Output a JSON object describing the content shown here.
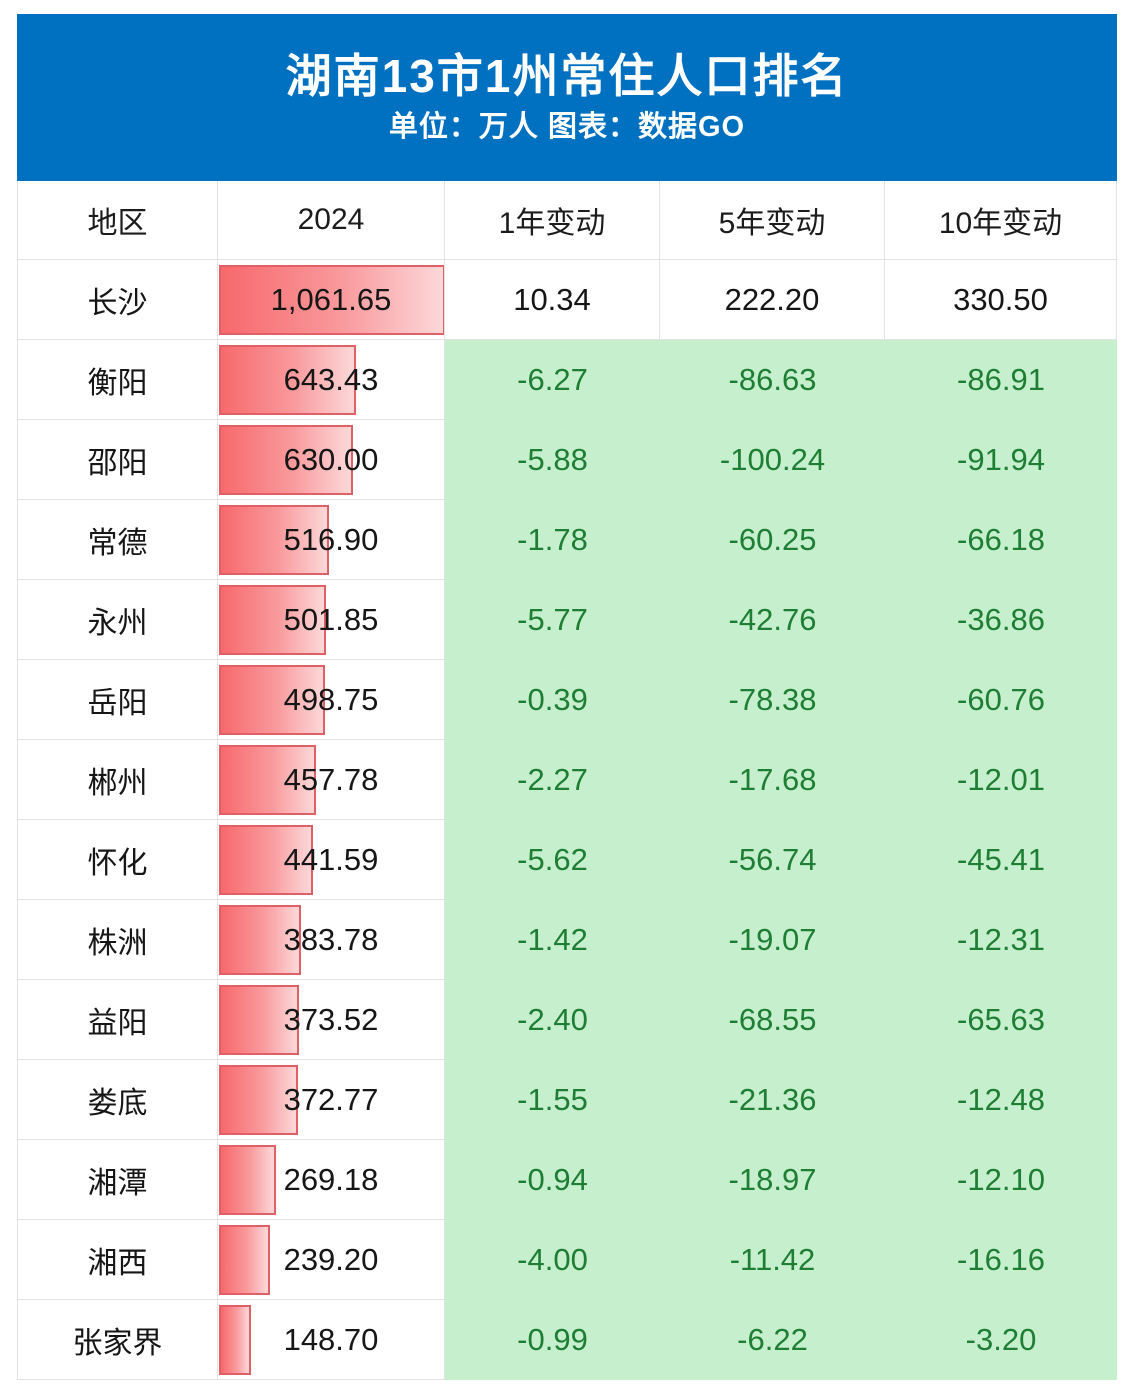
{
  "banner": {
    "title": "湖南13市1州常住人口排名",
    "subtitle": "单位：万人 图表：数据GO",
    "background_color": "#0070c0",
    "text_color": "#ffffff"
  },
  "table": {
    "columns": [
      "地区",
      "2024",
      "1年变动",
      "5年变动",
      "10年变动"
    ],
    "rows": [
      {
        "region": "长沙",
        "value_2024": "1,061.65",
        "change_1yr": "10.34",
        "change_5yr": "222.20",
        "change_10yr": "330.50"
      },
      {
        "region": "衡阳",
        "value_2024": "643.43",
        "change_1yr": "-6.27",
        "change_5yr": "-86.63",
        "change_10yr": "-86.91"
      },
      {
        "region": "邵阳",
        "value_2024": "630.00",
        "change_1yr": "-5.88",
        "change_5yr": "-100.24",
        "change_10yr": "-91.94"
      },
      {
        "region": "常德",
        "value_2024": "516.90",
        "change_1yr": "-1.78",
        "change_5yr": "-60.25",
        "change_10yr": "-66.18"
      },
      {
        "region": "永州",
        "value_2024": "501.85",
        "change_1yr": "-5.77",
        "change_5yr": "-42.76",
        "change_10yr": "-36.86"
      },
      {
        "region": "岳阳",
        "value_2024": "498.75",
        "change_1yr": "-0.39",
        "change_5yr": "-78.38",
        "change_10yr": "-60.76"
      },
      {
        "region": "郴州",
        "value_2024": "457.78",
        "change_1yr": "-2.27",
        "change_5yr": "-17.68",
        "change_10yr": "-12.01"
      },
      {
        "region": "怀化",
        "value_2024": "441.59",
        "change_1yr": "-5.62",
        "change_5yr": "-56.74",
        "change_10yr": "-45.41"
      },
      {
        "region": "株洲",
        "value_2024": "383.78",
        "change_1yr": "-1.42",
        "change_5yr": "-19.07",
        "change_10yr": "-12.31"
      },
      {
        "region": "益阳",
        "value_2024": "373.52",
        "change_1yr": "-2.40",
        "change_5yr": "-68.55",
        "change_10yr": "-65.63"
      },
      {
        "region": "娄底",
        "value_2024": "372.77",
        "change_1yr": "-1.55",
        "change_5yr": "-21.36",
        "change_10yr": "-12.48"
      },
      {
        "region": "湘潭",
        "value_2024": "269.18",
        "change_1yr": "-0.94",
        "change_5yr": "-18.97",
        "change_10yr": "-12.10"
      },
      {
        "region": "湘西",
        "value_2024": "239.20",
        "change_1yr": "-4.00",
        "change_5yr": "-11.42",
        "change_10yr": "-16.16"
      },
      {
        "region": "张家界",
        "value_2024": "148.70",
        "change_1yr": "-0.99",
        "change_5yr": "-6.22",
        "change_10yr": "-3.20"
      }
    ],
    "colors": {
      "bar_gradient_start": "#f7696c",
      "bar_gradient_end": "#fcd8d9",
      "bar_border": "#e06066",
      "negative_bg": "#c6efce",
      "negative_text": "#1e7e34",
      "gridline": "#e3e3e3"
    }
  },
  "chart_data": {
    "type": "table",
    "title": "湖南13市1州常住人口排名",
    "unit": "万人",
    "source": "数据GO",
    "categories": [
      "长沙",
      "衡阳",
      "邵阳",
      "常德",
      "永州",
      "岳阳",
      "郴州",
      "怀化",
      "株洲",
      "益阳",
      "娄底",
      "湘潭",
      "湘西",
      "张家界"
    ],
    "series": [
      {
        "name": "2024",
        "values": [
          1061.65,
          643.43,
          630.0,
          516.9,
          501.85,
          498.75,
          457.78,
          441.59,
          383.78,
          373.52,
          372.77,
          269.18,
          239.2,
          148.7
        ]
      },
      {
        "name": "1年变动",
        "values": [
          10.34,
          -6.27,
          -5.88,
          -1.78,
          -5.77,
          -0.39,
          -2.27,
          -5.62,
          -1.42,
          -2.4,
          -1.55,
          -0.94,
          -4.0,
          -0.99
        ]
      },
      {
        "name": "5年变动",
        "values": [
          222.2,
          -86.63,
          -100.24,
          -60.25,
          -42.76,
          -78.38,
          -17.68,
          -56.74,
          -19.07,
          -68.55,
          -21.36,
          -18.97,
          -11.42,
          -6.22
        ]
      },
      {
        "name": "10年变动",
        "values": [
          330.5,
          -86.91,
          -91.94,
          -66.18,
          -36.86,
          -60.76,
          -12.01,
          -45.41,
          -12.31,
          -65.63,
          -12.48,
          -12.1,
          -16.16,
          -3.2
        ]
      }
    ],
    "bar_column": "2024",
    "bar_max": 1061.65,
    "layout": "data bars drawn in 2024 column, negative change cells filled light green"
  }
}
